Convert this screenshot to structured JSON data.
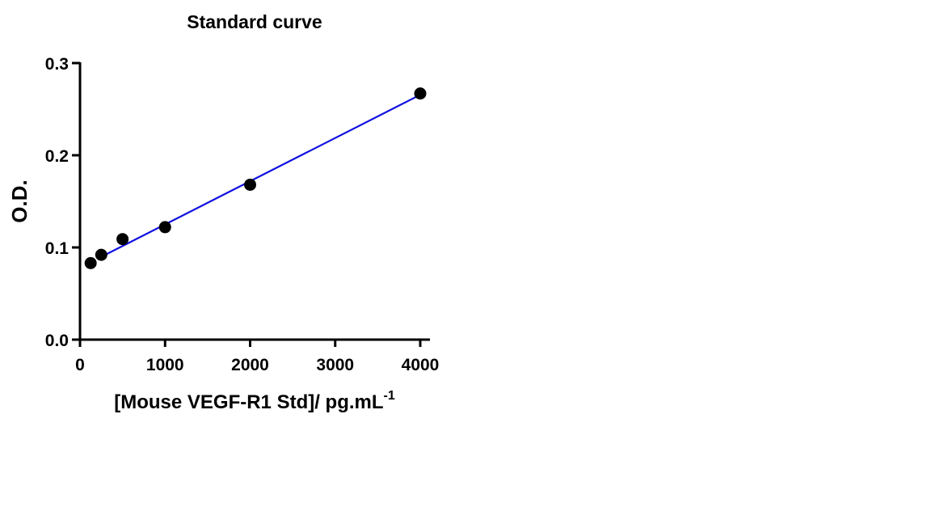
{
  "chart_data": {
    "type": "scatter",
    "title": "Standard curve",
    "xlabel": "[Mouse VEGF-R1 Std]/ pg.mL",
    "xlabel_superscript": "-1",
    "ylabel": "O.D.",
    "xlim": [
      0,
      4100
    ],
    "ylim": [
      0,
      0.3
    ],
    "xticks": [
      0,
      1000,
      2000,
      3000,
      4000
    ],
    "xtick_labels": [
      "0",
      "1000",
      "2000",
      "3000",
      "4000"
    ],
    "yticks": [
      0,
      0.1,
      0.2,
      0.3
    ],
    "ytick_labels": [
      "0.0",
      "0.1",
      "0.2",
      "0.3"
    ],
    "grid": false,
    "series": [
      {
        "points": [
          {
            "x": 125,
            "y": 0.083
          },
          {
            "x": 250,
            "y": 0.092
          },
          {
            "x": 500,
            "y": 0.109
          },
          {
            "x": 1000,
            "y": 0.122
          },
          {
            "x": 2000,
            "y": 0.168
          },
          {
            "x": 4000,
            "y": 0.267
          }
        ],
        "color": "#000000"
      }
    ],
    "fit_line": {
      "x": [
        250,
        4000
      ],
      "y": [
        0.0898,
        0.2656
      ],
      "color": "#1010e0"
    }
  }
}
